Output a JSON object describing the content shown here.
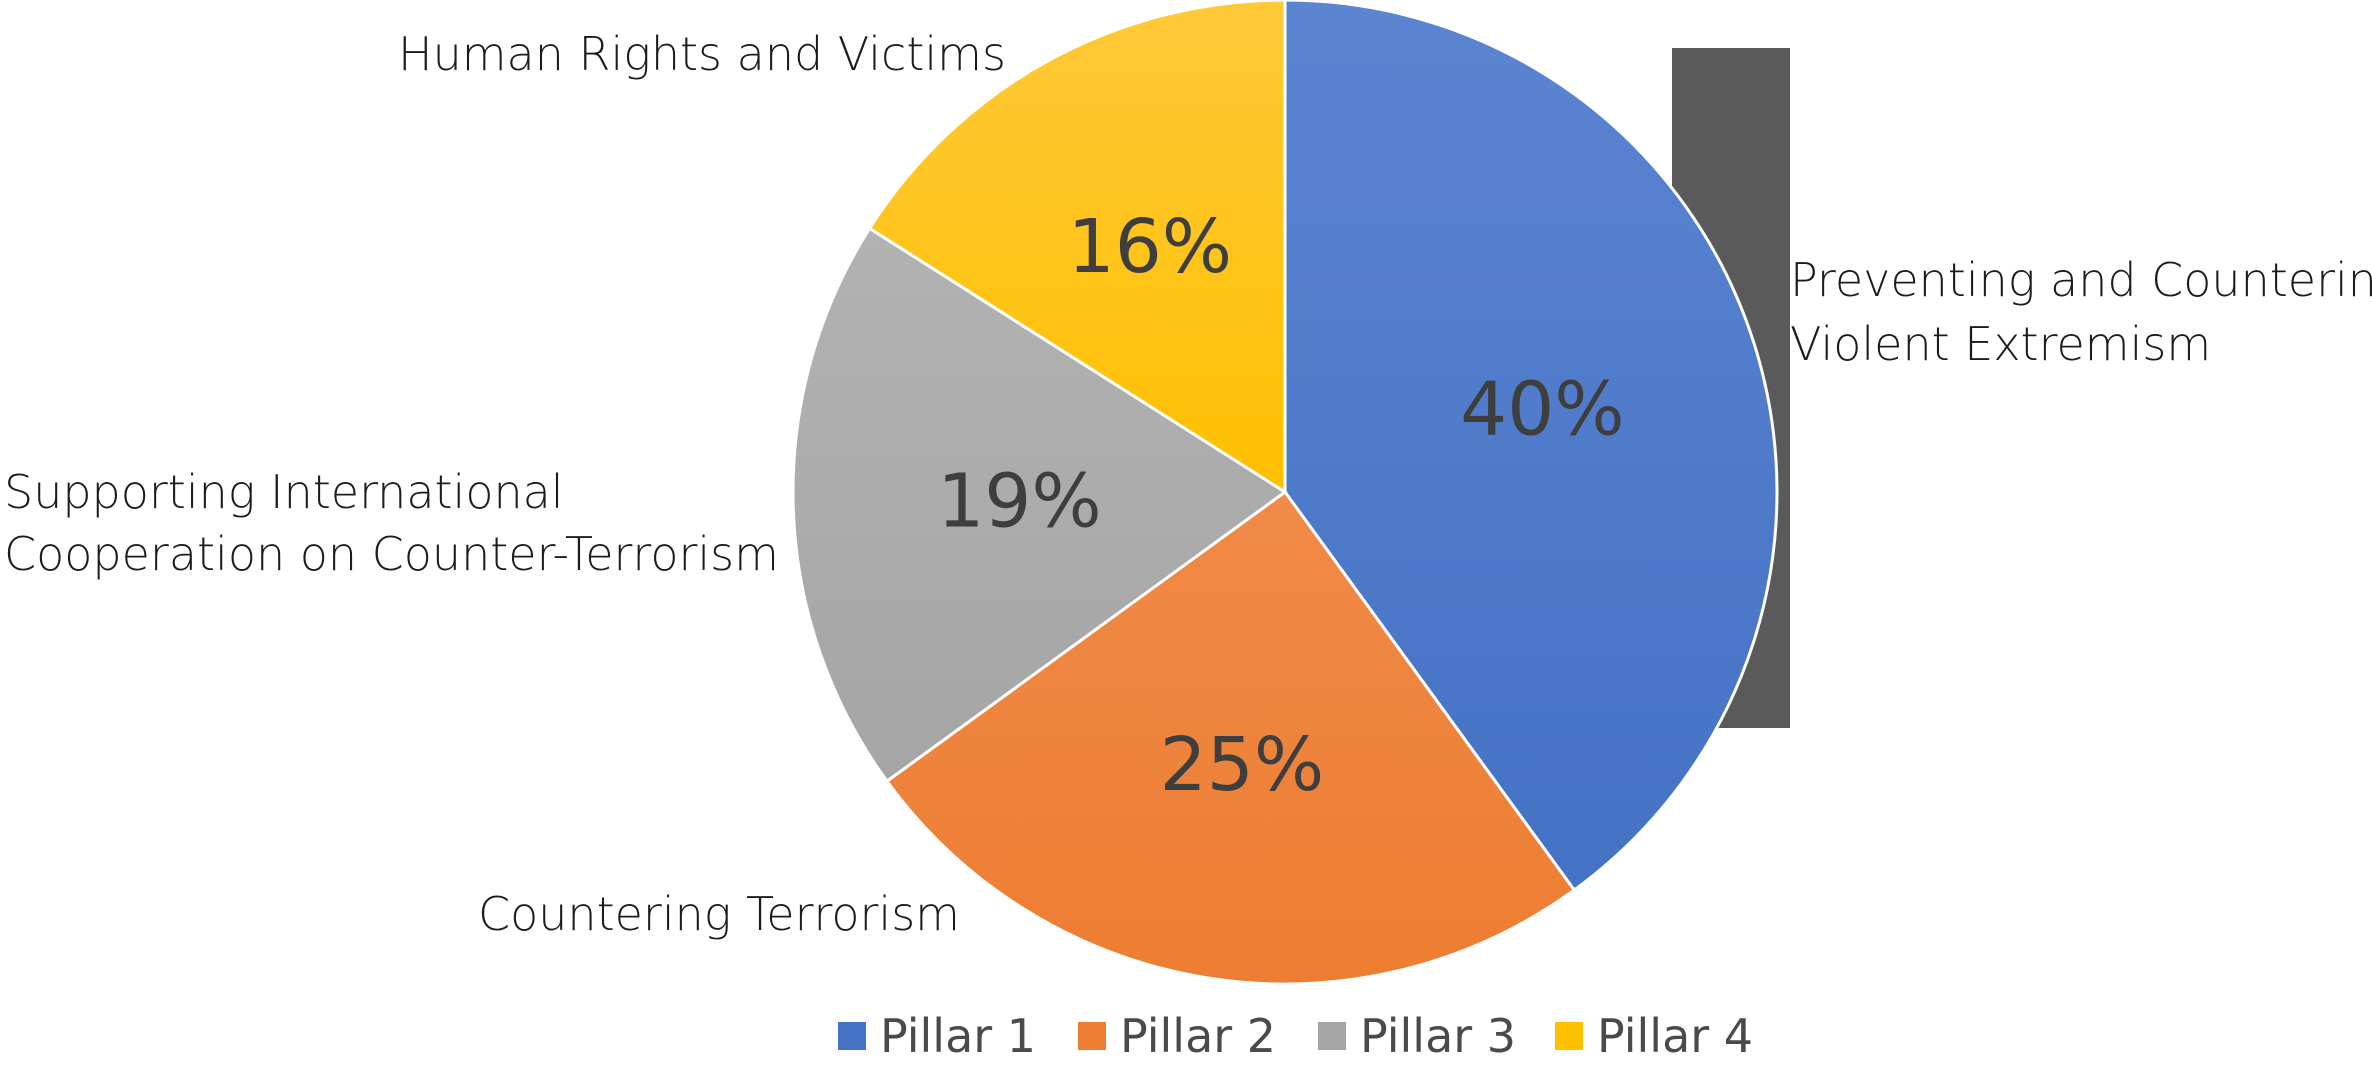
{
  "chart_data": {
    "type": "pie",
    "start_angle_deg": 0,
    "direction": "clockwise",
    "slices": [
      {
        "legend": "Pillar 1",
        "category": "Preventing and Countering Violent Extremism",
        "value": 40,
        "label": "40%",
        "color": "#4472c4",
        "color_light": "#5b84d1"
      },
      {
        "legend": "Pillar 2",
        "category": "Countering Terrorism",
        "value": 25,
        "label": "25%",
        "color": "#ed7d31",
        "color_light": "#f08a47"
      },
      {
        "legend": "Pillar 3",
        "category": "Supporting International Cooperation on Counter-Terrorism",
        "value": 19,
        "label": "19%",
        "color": "#a5a5a5",
        "color_light": "#b2b2b2"
      },
      {
        "legend": "Pillar 4",
        "category": "Human Rights and Victims",
        "value": 16,
        "label": "16%",
        "color": "#ffc000",
        "color_light": "#ffc838"
      }
    ],
    "legend_position": "bottom"
  },
  "labels": {
    "pillar1_line1": "Preventing and Countering",
    "pillar1_line2": "Violent Extremism",
    "pillar2": "Countering Terrorism",
    "pillar3_line1": "Supporting International",
    "pillar3_line2": "Cooperation on Counter-Terrorism",
    "pillar4": "Human Rights and Victims"
  }
}
